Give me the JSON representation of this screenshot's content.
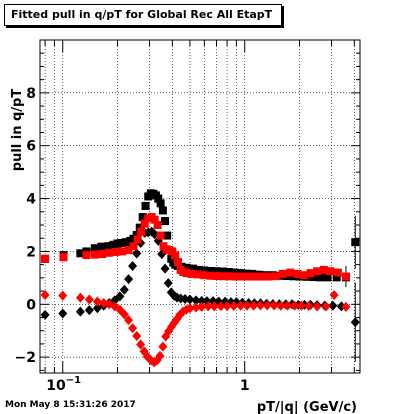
{
  "canvas": {
    "title": "Fitted pull in q/pT for Global Rec All EtapT",
    "timestamp": "Mon May  8 15:31:26 2017"
  },
  "colors": {
    "series_black": "#000000",
    "series_red": "#ff0000",
    "grid": "#000000",
    "background": "#ffffff"
  },
  "chart_data": {
    "type": "scatter",
    "title": "Fitted pull in q/pT for Global Rec All EtapT",
    "xlabel": "pT/|q| (GeV/c)",
    "ylabel": "pull in q/pT",
    "x_scale": "log",
    "xlim": [
      0.075,
      4.3
    ],
    "ylim": [
      -2.6,
      10.0
    ],
    "x_tick_labels": [
      {
        "x": 0.1,
        "label": "10",
        "exp": "−1"
      },
      {
        "x": 1,
        "label": "1",
        "exp": ""
      }
    ],
    "y_tick_labels": [
      {
        "y": -2,
        "label": "−2"
      },
      {
        "y": 0,
        "label": "0"
      },
      {
        "y": 2,
        "label": "2"
      },
      {
        "y": 4,
        "label": "4"
      },
      {
        "y": 6,
        "label": "6"
      },
      {
        "y": 8,
        "label": "8"
      }
    ],
    "grid": true,
    "series": [
      {
        "color": "#000000",
        "marker": "square",
        "points": [
          [
            0.08,
            1.72
          ],
          [
            0.101,
            1.86
          ],
          [
            0.125,
            1.93
          ],
          [
            0.135,
            2.0
          ],
          [
            0.15,
            2.12
          ],
          [
            0.163,
            2.18
          ],
          [
            0.178,
            2.2
          ],
          [
            0.19,
            2.25
          ],
          [
            0.2,
            2.3
          ],
          [
            0.21,
            2.32
          ],
          [
            0.222,
            2.35
          ],
          [
            0.235,
            2.4
          ],
          [
            0.245,
            2.48
          ],
          [
            0.255,
            2.62
          ],
          [
            0.265,
            2.9
          ],
          [
            0.275,
            3.3
          ],
          [
            0.285,
            3.72
          ],
          [
            0.295,
            4.08
          ],
          [
            0.305,
            4.2
          ],
          [
            0.315,
            4.18
          ],
          [
            0.325,
            4.12
          ],
          [
            0.335,
            4.0
          ],
          [
            0.345,
            3.82
          ],
          [
            0.355,
            3.55
          ],
          [
            0.365,
            3.15
          ],
          [
            0.375,
            2.6
          ],
          [
            0.385,
            2.05
          ],
          [
            0.395,
            1.72
          ],
          [
            0.405,
            1.58
          ],
          [
            0.415,
            1.5
          ],
          [
            0.43,
            1.45
          ],
          [
            0.45,
            1.42
          ],
          [
            0.48,
            1.38
          ],
          [
            0.52,
            1.35
          ],
          [
            0.56,
            1.3
          ],
          [
            0.6,
            1.28
          ],
          [
            0.65,
            1.26
          ],
          [
            0.7,
            1.25
          ],
          [
            0.76,
            1.24
          ],
          [
            0.82,
            1.22
          ],
          [
            0.88,
            1.2
          ],
          [
            0.95,
            1.18
          ],
          [
            1.02,
            1.16
          ],
          [
            1.1,
            1.15
          ],
          [
            1.2,
            1.12
          ],
          [
            1.3,
            1.1
          ],
          [
            1.42,
            1.1
          ],
          [
            1.55,
            1.08
          ],
          [
            1.7,
            1.07
          ],
          [
            1.85,
            1.06
          ],
          [
            2.0,
            1.05
          ],
          [
            2.2,
            1.04
          ],
          [
            2.4,
            1.03
          ],
          [
            2.6,
            1.02
          ],
          [
            2.85,
            1.02
          ],
          [
            3.2,
            1.02
          ],
          [
            3.6,
            1.02
          ],
          [
            4.05,
            2.35
          ]
        ]
      },
      {
        "color": "#000000",
        "marker": "diamond",
        "points": [
          [
            0.08,
            -0.4
          ],
          [
            0.1,
            -0.35
          ],
          [
            0.125,
            -0.28
          ],
          [
            0.14,
            -0.22
          ],
          [
            0.155,
            -0.15
          ],
          [
            0.168,
            -0.05
          ],
          [
            0.18,
            0.05
          ],
          [
            0.193,
            0.15
          ],
          [
            0.206,
            0.3
          ],
          [
            0.218,
            0.55
          ],
          [
            0.23,
            0.95
          ],
          [
            0.242,
            1.45
          ],
          [
            0.255,
            1.92
          ],
          [
            0.268,
            2.32
          ],
          [
            0.282,
            2.7
          ],
          [
            0.295,
            2.72
          ],
          [
            0.308,
            2.75
          ],
          [
            0.32,
            2.65
          ],
          [
            0.335,
            2.4
          ],
          [
            0.35,
            1.9
          ],
          [
            0.365,
            1.35
          ],
          [
            0.38,
            0.8
          ],
          [
            0.395,
            0.45
          ],
          [
            0.41,
            0.32
          ],
          [
            0.425,
            0.25
          ],
          [
            0.445,
            0.22
          ],
          [
            0.47,
            0.2
          ],
          [
            0.5,
            0.18
          ],
          [
            0.54,
            0.15
          ],
          [
            0.58,
            0.13
          ],
          [
            0.62,
            0.12
          ],
          [
            0.67,
            0.12
          ],
          [
            0.72,
            0.1
          ],
          [
            0.78,
            0.1
          ],
          [
            0.84,
            0.08
          ],
          [
            0.9,
            0.08
          ],
          [
            0.97,
            0.06
          ],
          [
            1.05,
            0.05
          ],
          [
            1.13,
            0.04
          ],
          [
            1.22,
            0.04
          ],
          [
            1.32,
            0.02
          ],
          [
            1.43,
            0.01
          ],
          [
            1.55,
            0.0
          ],
          [
            1.68,
            0.0
          ],
          [
            1.82,
            0.0
          ],
          [
            1.97,
            -0.02
          ],
          [
            2.13,
            -0.02
          ],
          [
            2.3,
            -0.02
          ],
          [
            2.5,
            -0.03
          ],
          [
            2.75,
            -0.05
          ],
          [
            3.05,
            -0.05
          ],
          [
            3.4,
            -0.08
          ],
          [
            4.05,
            -0.68
          ]
        ]
      },
      {
        "color": "#ff0000",
        "marker": "square",
        "points": [
          [
            0.08,
            1.72
          ],
          [
            0.101,
            1.78
          ],
          [
            0.135,
            1.86
          ],
          [
            0.15,
            1.88
          ],
          [
            0.165,
            1.9
          ],
          [
            0.18,
            1.95
          ],
          [
            0.195,
            1.98
          ],
          [
            0.212,
            2.0
          ],
          [
            0.23,
            2.05
          ],
          [
            0.245,
            2.2
          ],
          [
            0.258,
            2.45
          ],
          [
            0.27,
            2.75
          ],
          [
            0.282,
            3.05
          ],
          [
            0.295,
            3.25
          ],
          [
            0.308,
            3.3
          ],
          [
            0.32,
            3.2
          ],
          [
            0.332,
            3.0
          ],
          [
            0.345,
            2.6
          ],
          [
            0.358,
            2.2
          ],
          [
            0.372,
            2.08
          ],
          [
            0.386,
            2.05
          ],
          [
            0.4,
            2.0
          ],
          [
            0.415,
            1.85
          ],
          [
            0.43,
            1.6
          ],
          [
            0.445,
            1.3
          ],
          [
            0.46,
            1.22
          ],
          [
            0.48,
            1.18
          ],
          [
            0.51,
            1.15
          ],
          [
            0.55,
            1.13
          ],
          [
            0.6,
            1.1
          ],
          [
            0.65,
            1.08
          ],
          [
            0.7,
            1.07
          ],
          [
            0.76,
            1.06
          ],
          [
            0.82,
            1.06
          ],
          [
            0.89,
            1.05
          ],
          [
            0.96,
            1.05
          ],
          [
            1.05,
            1.05
          ],
          [
            1.15,
            1.05
          ],
          [
            1.25,
            1.05
          ],
          [
            1.35,
            1.05
          ],
          [
            1.48,
            1.06
          ],
          [
            1.62,
            1.15
          ],
          [
            1.78,
            1.2
          ],
          [
            1.95,
            1.15
          ],
          [
            2.12,
            1.1
          ],
          [
            2.3,
            1.18
          ],
          [
            2.5,
            1.25
          ],
          [
            2.72,
            1.3
          ],
          [
            2.95,
            1.25
          ],
          [
            3.25,
            1.2
          ],
          [
            3.6,
            1.05
          ]
        ]
      },
      {
        "color": "#ff0000",
        "marker": "diamond",
        "points": [
          [
            0.08,
            0.35
          ],
          [
            0.1,
            0.33
          ],
          [
            0.125,
            0.25
          ],
          [
            0.14,
            0.18
          ],
          [
            0.155,
            0.1
          ],
          [
            0.168,
            0.05
          ],
          [
            0.18,
            0.0
          ],
          [
            0.193,
            -0.08
          ],
          [
            0.206,
            -0.2
          ],
          [
            0.218,
            -0.38
          ],
          [
            0.23,
            -0.6
          ],
          [
            0.242,
            -0.9
          ],
          [
            0.255,
            -1.2
          ],
          [
            0.268,
            -1.52
          ],
          [
            0.28,
            -1.78
          ],
          [
            0.292,
            -1.98
          ],
          [
            0.305,
            -2.12
          ],
          [
            0.318,
            -2.2
          ],
          [
            0.33,
            -2.12
          ],
          [
            0.342,
            -1.95
          ],
          [
            0.355,
            -1.6
          ],
          [
            0.368,
            -1.22
          ],
          [
            0.382,
            -1.02
          ],
          [
            0.396,
            -0.85
          ],
          [
            0.41,
            -0.7
          ],
          [
            0.425,
            -0.55
          ],
          [
            0.44,
            -0.4
          ],
          [
            0.458,
            -0.28
          ],
          [
            0.478,
            -0.2
          ],
          [
            0.5,
            -0.15
          ],
          [
            0.54,
            -0.12
          ],
          [
            0.58,
            -0.1
          ],
          [
            0.63,
            -0.08
          ],
          [
            0.68,
            -0.08
          ],
          [
            0.74,
            -0.07
          ],
          [
            0.8,
            -0.07
          ],
          [
            0.87,
            -0.06
          ],
          [
            0.95,
            -0.05
          ],
          [
            1.03,
            -0.05
          ],
          [
            1.12,
            -0.05
          ],
          [
            1.22,
            -0.04
          ],
          [
            1.33,
            -0.04
          ],
          [
            1.45,
            -0.04
          ],
          [
            1.58,
            -0.05
          ],
          [
            1.72,
            -0.05
          ],
          [
            1.88,
            -0.05
          ],
          [
            2.05,
            -0.05
          ],
          [
            2.25,
            -0.06
          ],
          [
            2.5,
            -0.08
          ],
          [
            2.8,
            -0.08
          ],
          [
            3.1,
            0.35
          ],
          [
            3.6,
            -0.1
          ]
        ]
      }
    ]
  }
}
